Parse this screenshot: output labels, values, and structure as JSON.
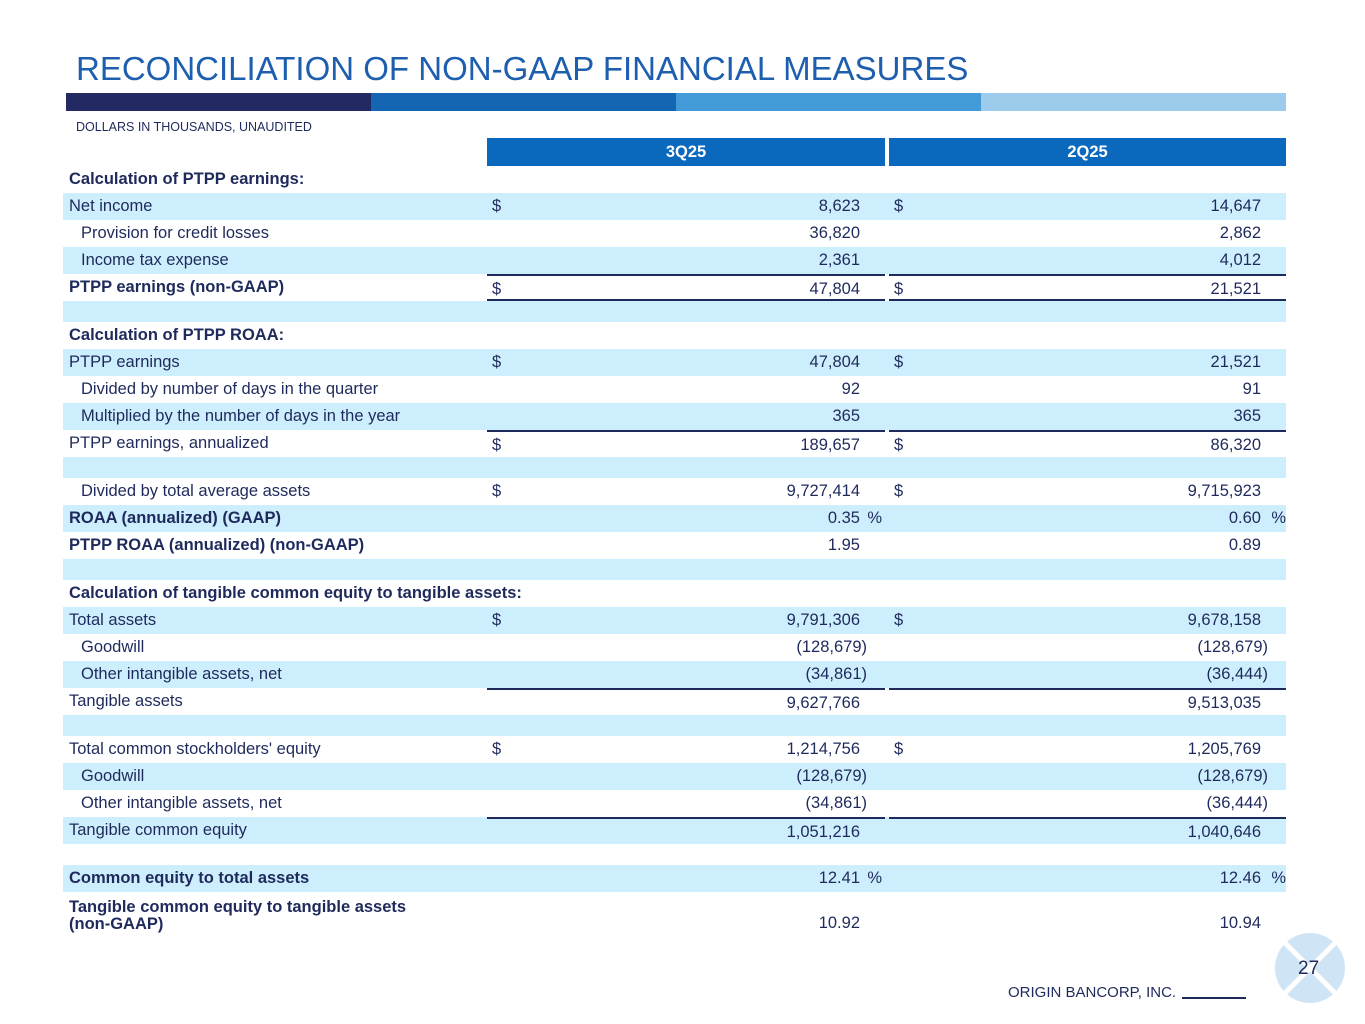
{
  "title": "RECONCILIATION OF NON-GAAP FINANCIAL MEASURES",
  "subtitle": "DOLLARS IN THOUSANDS, UNAUDITED",
  "colors": {
    "bar1": "#232a63",
    "bar2": "#1466b2",
    "bar3": "#429bd8",
    "bar4": "#9ccbeb",
    "header": "#0b69bd",
    "stripe": "#cdeefc",
    "text": "#1f2a5c"
  },
  "columns": [
    "3Q25",
    "2Q25"
  ],
  "rows": [
    {
      "label": "Calculation of PTPP earnings:",
      "bold": true
    },
    {
      "label": "Net income",
      "stripe": true,
      "a": {
        "d": "$",
        "v": "8,623"
      },
      "b": {
        "d": "$",
        "v": "14,647"
      }
    },
    {
      "label": "Provision for credit losses",
      "indent": true,
      "a": {
        "v": "36,820"
      },
      "b": {
        "v": "2,862"
      }
    },
    {
      "label": "Income tax expense",
      "indent": true,
      "stripe": true,
      "a": {
        "v": "2,361"
      },
      "b": {
        "v": "4,012"
      }
    },
    {
      "label": "PTPP earnings (non-GAAP)",
      "bold": true,
      "line": true,
      "dbl": true,
      "a": {
        "d": "$",
        "v": "47,804"
      },
      "b": {
        "d": "$",
        "v": "21,521"
      }
    },
    {
      "spacer": true,
      "stripe": true
    },
    {
      "label": "Calculation of PTPP ROAA:",
      "bold": true
    },
    {
      "label": "PTPP earnings",
      "stripe": true,
      "a": {
        "d": "$",
        "v": "47,804"
      },
      "b": {
        "d": "$",
        "v": "21,521"
      }
    },
    {
      "label": "Divided by number of days in the quarter",
      "indent": true,
      "a": {
        "v": "92"
      },
      "b": {
        "v": "91"
      }
    },
    {
      "label": "Multiplied by the number of days in the year",
      "indent": true,
      "stripe": true,
      "a": {
        "v": "365"
      },
      "b": {
        "v": "365"
      }
    },
    {
      "label": "PTPP earnings, annualized",
      "line": true,
      "a": {
        "d": "$",
        "v": "189,657"
      },
      "b": {
        "d": "$",
        "v": "86,320"
      }
    },
    {
      "spacer": true,
      "stripe": true
    },
    {
      "label": "Divided by total average assets",
      "indent": true,
      "a": {
        "d": "$",
        "v": "9,727,414"
      },
      "b": {
        "d": "$",
        "v": "9,715,923"
      }
    },
    {
      "label": "ROAA (annualized) (GAAP)",
      "bold": true,
      "stripe": true,
      "a": {
        "v": "0.35",
        "p": "%"
      },
      "b": {
        "v": "0.60",
        "p": "%"
      }
    },
    {
      "label": "PTPP ROAA (annualized) (non-GAAP)",
      "bold": true,
      "a": {
        "v": "1.95"
      },
      "b": {
        "v": "0.89"
      }
    },
    {
      "spacer": true,
      "stripe": true
    },
    {
      "label": "Calculation of tangible common equity to tangible assets:",
      "bold": true
    },
    {
      "label": "Total assets",
      "stripe": true,
      "a": {
        "d": "$",
        "v": "9,791,306"
      },
      "b": {
        "d": "$",
        "v": "9,678,158"
      }
    },
    {
      "label": "Goodwill",
      "indent": true,
      "neg": true,
      "a": {
        "v": "(128,679)"
      },
      "b": {
        "v": "(128,679)"
      }
    },
    {
      "label": "Other intangible assets, net",
      "indent": true,
      "neg": true,
      "stripe": true,
      "a": {
        "v": "(34,861)"
      },
      "b": {
        "v": "(36,444)"
      }
    },
    {
      "label": "Tangible assets",
      "line": true,
      "a": {
        "v": "9,627,766"
      },
      "b": {
        "v": "9,513,035"
      }
    },
    {
      "spacer": true,
      "stripe": true
    },
    {
      "label": "Total common stockholders' equity",
      "a": {
        "d": "$",
        "v": "1,214,756"
      },
      "b": {
        "d": "$",
        "v": "1,205,769"
      }
    },
    {
      "label": "Goodwill",
      "indent": true,
      "neg": true,
      "stripe": true,
      "a": {
        "v": "(128,679)"
      },
      "b": {
        "v": "(128,679)"
      }
    },
    {
      "label": "Other intangible assets, net",
      "indent": true,
      "neg": true,
      "a": {
        "v": "(34,861)"
      },
      "b": {
        "v": "(36,444)"
      }
    },
    {
      "label": "Tangible common equity",
      "stripe": true,
      "line": true,
      "a": {
        "v": "1,051,216"
      },
      "b": {
        "v": "1,040,646"
      }
    },
    {
      "spacer": true
    },
    {
      "label": "Common equity to total assets",
      "bold": true,
      "stripe": true,
      "a": {
        "v": "12.41",
        "p": "%"
      },
      "b": {
        "v": "12.46",
        "p": "%"
      }
    },
    {
      "label": "Tangible common equity to tangible assets\n(non-GAAP)",
      "bold": true,
      "tall": true,
      "a": {
        "v": "10.92"
      },
      "b": {
        "v": "10.94"
      }
    }
  ],
  "page_number": "27",
  "footer": "ORIGIN BANCORP, INC."
}
